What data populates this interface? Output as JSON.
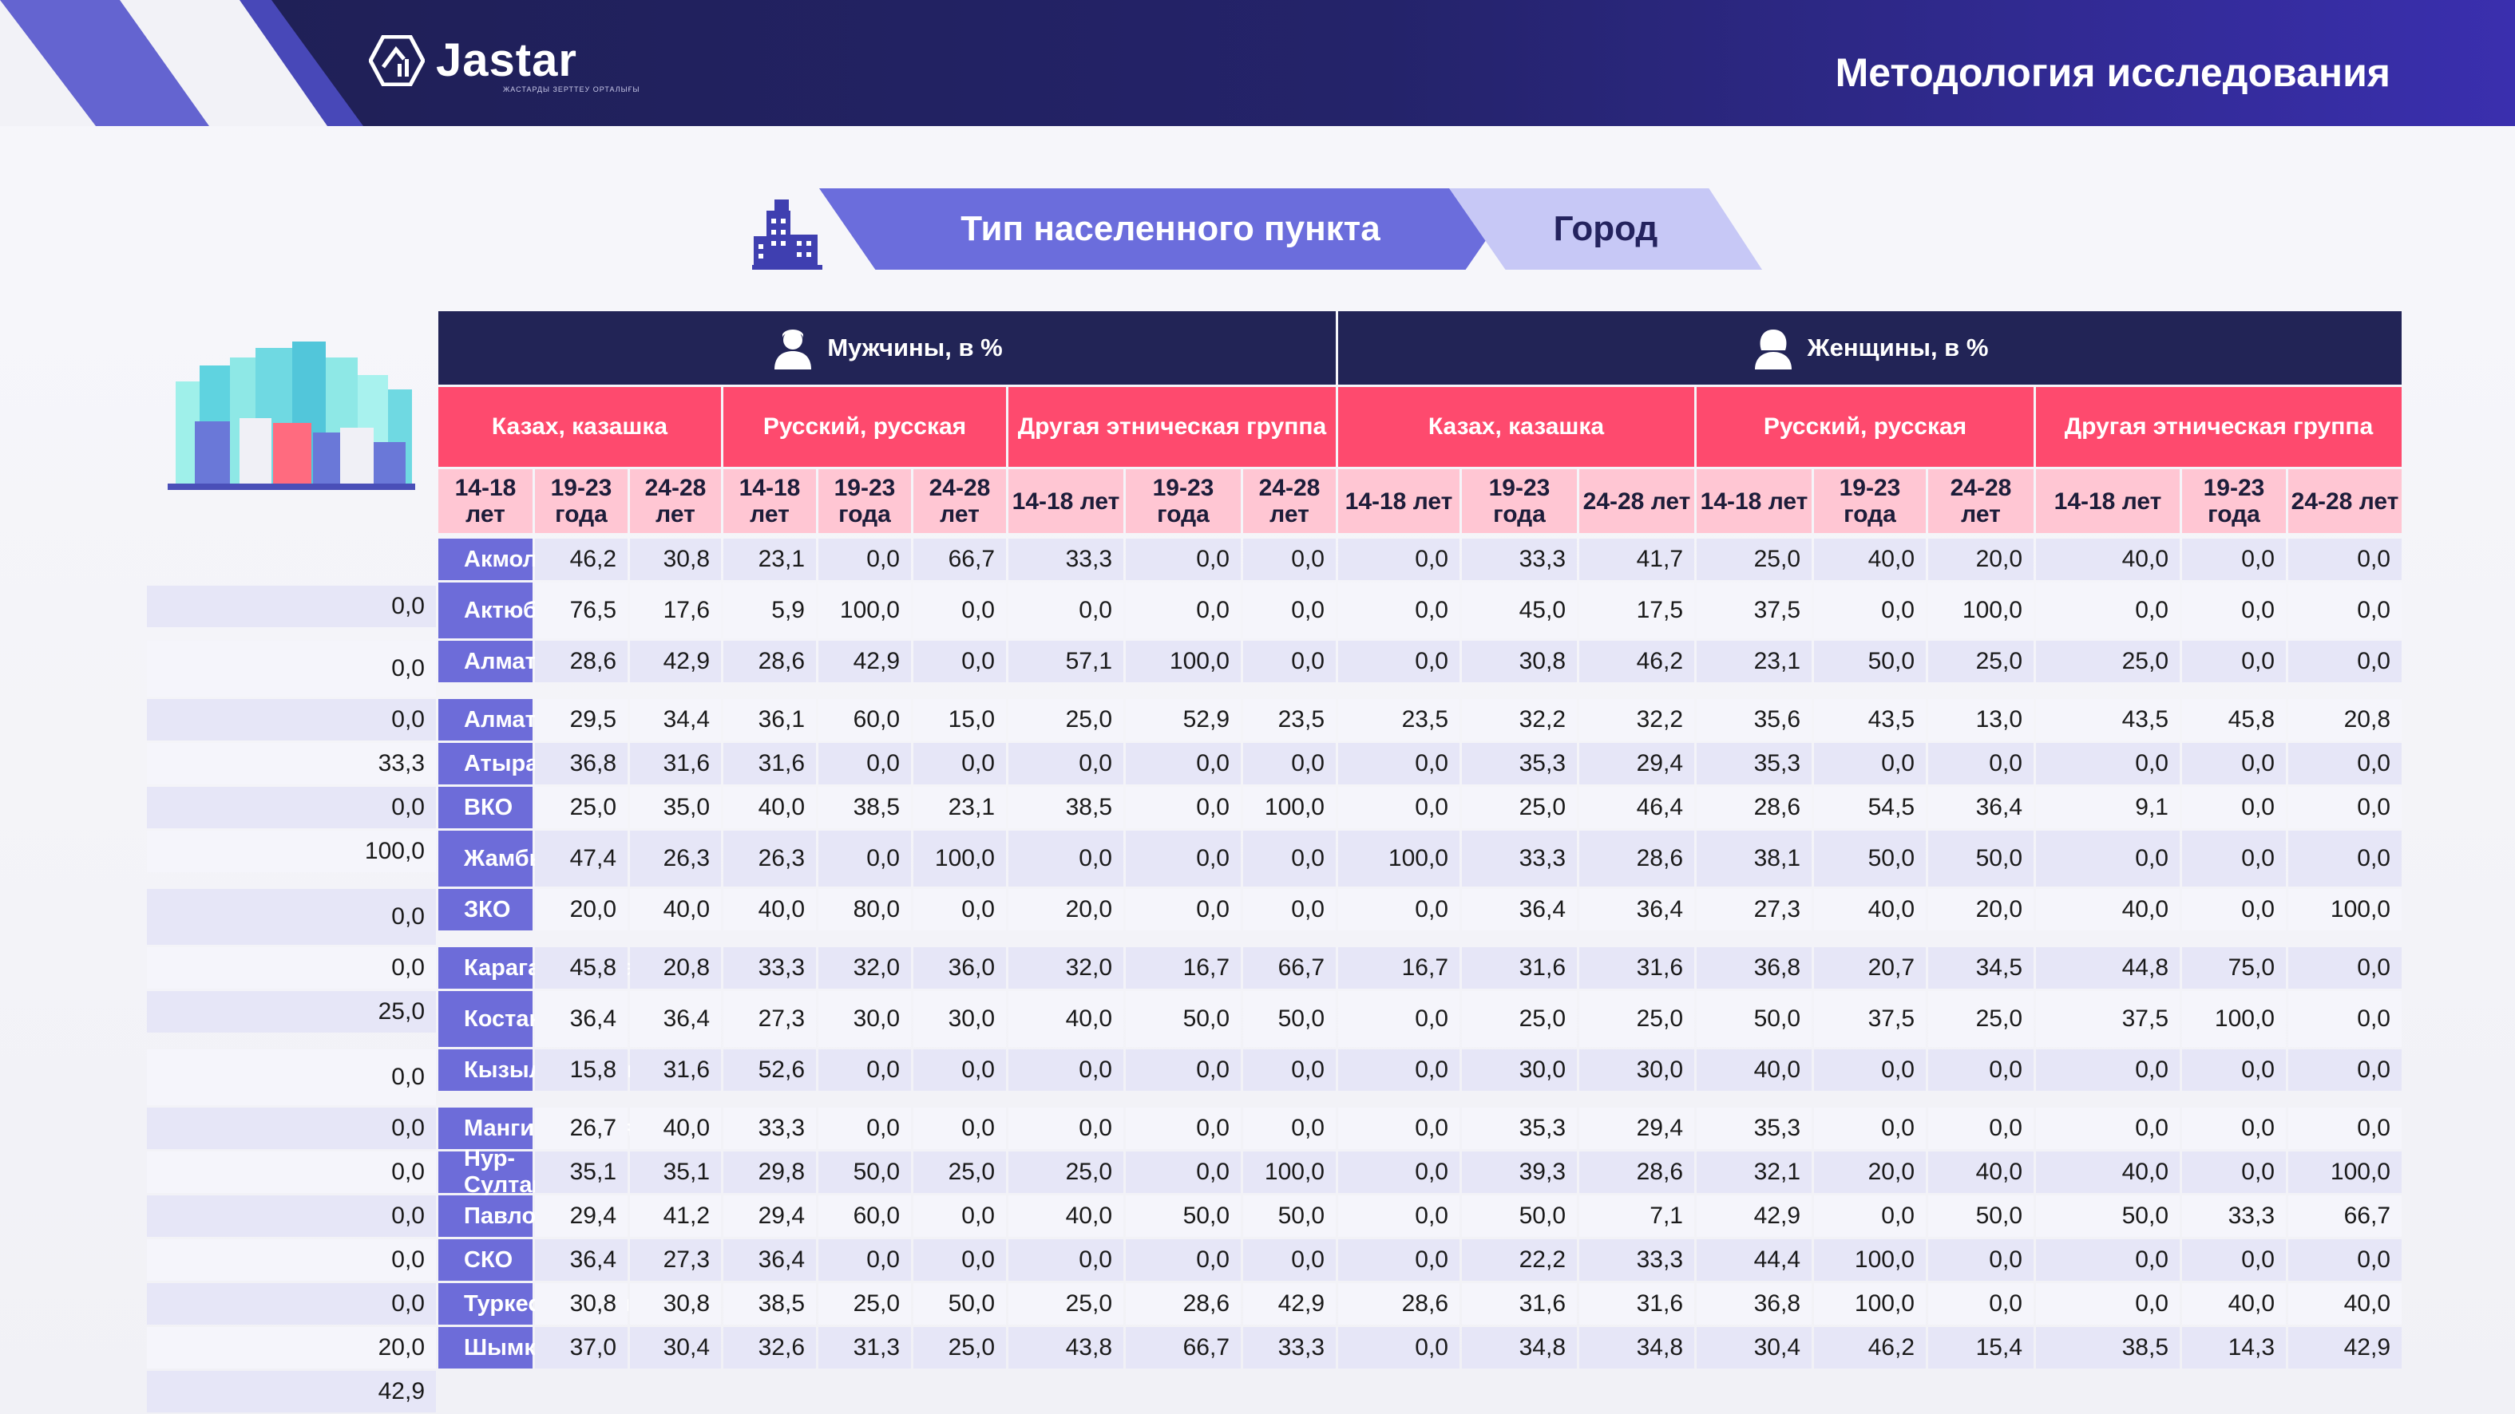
{
  "header": {
    "logo_text": "Jastar",
    "logo_subtitle": "ЖАСТАРДЫ ЗЕРТТЕУ ОРТАЛЫҒЫ",
    "title": "Методология исследования"
  },
  "banner": {
    "label": "Тип населенного пункта",
    "value": "Город"
  },
  "colors": {
    "header_dark": "#1e1f52",
    "accent_violet": "#6b6ddc",
    "accent_pink": "#fe4a6e",
    "age_pink": "#ffc6d3",
    "region_violet": "#6d6cd9"
  },
  "table": {
    "genders": [
      {
        "label": "Мужчины, в %",
        "icon": "male-user-icon"
      },
      {
        "label": "Женщины, в %",
        "icon": "female-user-icon"
      }
    ],
    "groups": [
      "Казах, казашка",
      "Русский, русская",
      "Другая этническая группа",
      "Казах, казашка",
      "Русский, русская",
      "Другая этническая группа"
    ],
    "ages": [
      "14-18 лет",
      "19-23 года",
      "24-28 лет",
      "14-18 лет",
      "19-23 года",
      "24-28 лет",
      "14-18 лет",
      "19-23 года",
      "24-28 лет",
      "14-18 лет",
      "19-23 года",
      "24-28 лет",
      "14-18 лет",
      "19-23 года",
      "24-28 лет",
      "14-18 лет",
      "19-23 года",
      "24-28 лет"
    ],
    "rows": [
      {
        "region": "Акмолинская",
        "values": [
          "46,2",
          "30,8",
          "23,1",
          "0,0",
          "66,7",
          "33,3",
          "0,0",
          "0,0",
          "0,0",
          "33,3",
          "41,7",
          "25,0",
          "40,0",
          "20,0",
          "40,0",
          "0,0",
          "0,0",
          "0,0"
        ]
      },
      {
        "region": "Актюбинская",
        "values": [
          "76,5",
          "17,6",
          "5,9",
          "100,0",
          "0,0",
          "0,0",
          "0,0",
          "0,0",
          "0,0",
          "45,0",
          "17,5",
          "37,5",
          "0,0",
          "100,0",
          "0,0",
          "0,0",
          "0,0",
          "0,0"
        ]
      },
      {
        "region": "Алматинская",
        "values": [
          "28,6",
          "42,9",
          "28,6",
          "42,9",
          "0,0",
          "57,1",
          "100,0",
          "0,0",
          "0,0",
          "30,8",
          "46,2",
          "23,1",
          "50,0",
          "25,0",
          "25,0",
          "0,0",
          "0,0",
          "0,0"
        ]
      },
      {
        "region": "Алматы",
        "values": [
          "29,5",
          "34,4",
          "36,1",
          "60,0",
          "15,0",
          "25,0",
          "52,9",
          "23,5",
          "23,5",
          "32,2",
          "32,2",
          "35,6",
          "43,5",
          "13,0",
          "43,5",
          "45,8",
          "20,8",
          "33,3"
        ]
      },
      {
        "region": "Атырауская",
        "values": [
          "36,8",
          "31,6",
          "31,6",
          "0,0",
          "0,0",
          "0,0",
          "0,0",
          "0,0",
          "0,0",
          "35,3",
          "29,4",
          "35,3",
          "0,0",
          "0,0",
          "0,0",
          "0,0",
          "0,0",
          "0,0"
        ]
      },
      {
        "region": "ВКО",
        "values": [
          "25,0",
          "35,0",
          "40,0",
          "38,5",
          "23,1",
          "38,5",
          "0,0",
          "100,0",
          "0,0",
          "25,0",
          "46,4",
          "28,6",
          "54,5",
          "36,4",
          "9,1",
          "0,0",
          "0,0",
          "100,0"
        ]
      },
      {
        "region": "Жамбылская",
        "values": [
          "47,4",
          "26,3",
          "26,3",
          "0,0",
          "100,0",
          "0,0",
          "0,0",
          "0,0",
          "100,0",
          "33,3",
          "28,6",
          "38,1",
          "50,0",
          "50,0",
          "0,0",
          "0,0",
          "0,0",
          "0,0"
        ]
      },
      {
        "region": "ЗКО",
        "values": [
          "20,0",
          "40,0",
          "40,0",
          "80,0",
          "0,0",
          "20,0",
          "0,0",
          "0,0",
          "0,0",
          "36,4",
          "36,4",
          "27,3",
          "40,0",
          "20,0",
          "40,0",
          "0,0",
          "100,0",
          "0,0"
        ]
      },
      {
        "region": "Карагандинская",
        "values": [
          "45,8",
          "20,8",
          "33,3",
          "32,0",
          "36,0",
          "32,0",
          "16,7",
          "66,7",
          "16,7",
          "31,6",
          "31,6",
          "36,8",
          "20,7",
          "34,5",
          "44,8",
          "75,0",
          "0,0",
          "25,0"
        ]
      },
      {
        "region": "Костанайская",
        "values": [
          "36,4",
          "36,4",
          "27,3",
          "30,0",
          "30,0",
          "40,0",
          "50,0",
          "50,0",
          "0,0",
          "25,0",
          "25,0",
          "50,0",
          "37,5",
          "25,0",
          "37,5",
          "100,0",
          "0,0",
          "0,0"
        ]
      },
      {
        "region": "Кызылординская",
        "values": [
          "15,8",
          "31,6",
          "52,6",
          "0,0",
          "0,0",
          "0,0",
          "0,0",
          "0,0",
          "0,0",
          "30,0",
          "30,0",
          "40,0",
          "0,0",
          "0,0",
          "0,0",
          "0,0",
          "0,0",
          "0,0"
        ]
      },
      {
        "region": "Мангистауская",
        "values": [
          "26,7",
          "40,0",
          "33,3",
          "0,0",
          "0,0",
          "0,0",
          "0,0",
          "0,0",
          "0,0",
          "35,3",
          "29,4",
          "35,3",
          "0,0",
          "0,0",
          "0,0",
          "0,0",
          "0,0",
          "0,0"
        ]
      },
      {
        "region": "Нур-Султан",
        "values": [
          "35,1",
          "35,1",
          "29,8",
          "50,0",
          "25,0",
          "25,0",
          "0,0",
          "100,0",
          "0,0",
          "39,3",
          "28,6",
          "32,1",
          "20,0",
          "40,0",
          "40,0",
          "0,0",
          "100,0",
          "0,0"
        ]
      },
      {
        "region": "Павлодарская",
        "values": [
          "29,4",
          "41,2",
          "29,4",
          "60,0",
          "0,0",
          "40,0",
          "50,0",
          "50,0",
          "0,0",
          "50,0",
          "7,1",
          "42,9",
          "0,0",
          "50,0",
          "50,0",
          "33,3",
          "66,7",
          "0,0"
        ]
      },
      {
        "region": "СКО",
        "values": [
          "36,4",
          "27,3",
          "36,4",
          "0,0",
          "0,0",
          "0,0",
          "0,0",
          "0,0",
          "0,0",
          "22,2",
          "33,3",
          "44,4",
          "100,0",
          "0,0",
          "0,0",
          "0,0",
          "0,0",
          "0,0"
        ]
      },
      {
        "region": "Туркестанская",
        "values": [
          "30,8",
          "30,8",
          "38,5",
          "25,0",
          "50,0",
          "25,0",
          "28,6",
          "42,9",
          "28,6",
          "31,6",
          "31,6",
          "36,8",
          "100,0",
          "0,0",
          "0,0",
          "40,0",
          "40,0",
          "20,0"
        ]
      },
      {
        "region": "Шымкент",
        "values": [
          "37,0",
          "30,4",
          "32,6",
          "31,3",
          "25,0",
          "43,8",
          "66,7",
          "33,3",
          "0,0",
          "34,8",
          "34,8",
          "30,4",
          "46,2",
          "15,4",
          "38,5",
          "14,3",
          "42,9",
          "42,9"
        ]
      }
    ]
  }
}
